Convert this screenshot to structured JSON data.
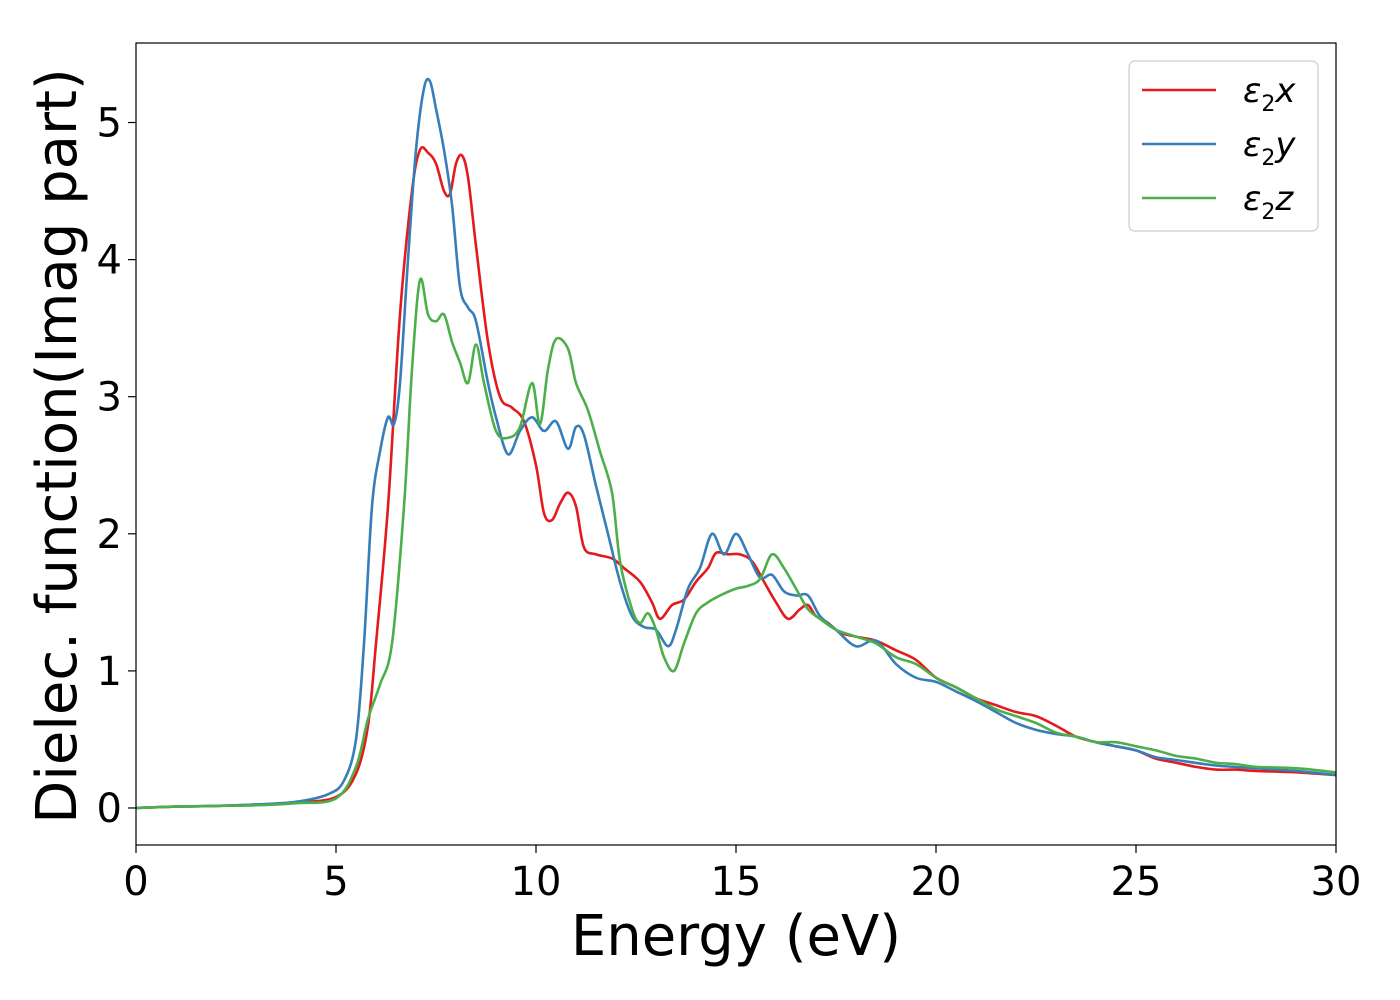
{
  "chart_data": {
    "type": "line",
    "title": "",
    "xlabel": "Energy (eV)",
    "ylabel": "Dielec. function(Imag part)",
    "xlim": [
      0,
      30
    ],
    "ylim": [
      -0.27,
      5.58
    ],
    "xticks": [
      0,
      5,
      10,
      15,
      20,
      25,
      30
    ],
    "yticks": [
      0,
      1,
      2,
      3,
      4,
      5
    ],
    "grid": false,
    "legend_position": "top-right",
    "series": [
      {
        "name": "ε2x",
        "legend": {
          "base": "ε",
          "sub": "2",
          "var": "x"
        },
        "color": "#e41a1c",
        "points": [
          [
            0,
            0
          ],
          [
            1,
            0.01
          ],
          [
            2,
            0.015
          ],
          [
            3,
            0.025
          ],
          [
            4,
            0.04
          ],
          [
            5,
            0.08
          ],
          [
            5.5,
            0.25
          ],
          [
            5.8,
            0.6
          ],
          [
            6.0,
            1.2
          ],
          [
            6.3,
            2.2
          ],
          [
            6.6,
            3.6
          ],
          [
            6.9,
            4.5
          ],
          [
            7.1,
            4.8
          ],
          [
            7.3,
            4.78
          ],
          [
            7.5,
            4.7
          ],
          [
            7.7,
            4.5
          ],
          [
            7.85,
            4.48
          ],
          [
            8.0,
            4.7
          ],
          [
            8.15,
            4.76
          ],
          [
            8.3,
            4.6
          ],
          [
            8.5,
            4.1
          ],
          [
            8.8,
            3.4
          ],
          [
            9.1,
            3.0
          ],
          [
            9.4,
            2.92
          ],
          [
            9.7,
            2.82
          ],
          [
            10.0,
            2.5
          ],
          [
            10.2,
            2.15
          ],
          [
            10.4,
            2.1
          ],
          [
            10.6,
            2.22
          ],
          [
            10.8,
            2.3
          ],
          [
            11.0,
            2.2
          ],
          [
            11.2,
            1.9
          ],
          [
            11.5,
            1.85
          ],
          [
            11.9,
            1.82
          ],
          [
            12.2,
            1.75
          ],
          [
            12.6,
            1.65
          ],
          [
            12.9,
            1.5
          ],
          [
            13.1,
            1.38
          ],
          [
            13.4,
            1.48
          ],
          [
            13.7,
            1.52
          ],
          [
            14.0,
            1.65
          ],
          [
            14.3,
            1.75
          ],
          [
            14.5,
            1.86
          ],
          [
            14.8,
            1.85
          ],
          [
            15.1,
            1.85
          ],
          [
            15.4,
            1.8
          ],
          [
            15.7,
            1.65
          ],
          [
            16.0,
            1.5
          ],
          [
            16.3,
            1.38
          ],
          [
            16.6,
            1.45
          ],
          [
            16.8,
            1.48
          ],
          [
            17.0,
            1.4
          ],
          [
            17.3,
            1.35
          ],
          [
            17.6,
            1.28
          ],
          [
            18.0,
            1.25
          ],
          [
            18.5,
            1.22
          ],
          [
            19.0,
            1.15
          ],
          [
            19.5,
            1.08
          ],
          [
            20.0,
            0.95
          ],
          [
            20.5,
            0.88
          ],
          [
            21.0,
            0.8
          ],
          [
            21.5,
            0.75
          ],
          [
            22.0,
            0.7
          ],
          [
            22.5,
            0.67
          ],
          [
            23.0,
            0.6
          ],
          [
            23.5,
            0.52
          ],
          [
            24.0,
            0.48
          ],
          [
            24.5,
            0.45
          ],
          [
            25.0,
            0.42
          ],
          [
            25.5,
            0.36
          ],
          [
            26.0,
            0.33
          ],
          [
            26.5,
            0.3
          ],
          [
            27.0,
            0.28
          ],
          [
            27.5,
            0.28
          ],
          [
            28.0,
            0.27
          ],
          [
            29.0,
            0.26
          ],
          [
            30.0,
            0.24
          ]
        ]
      },
      {
        "name": "ε2y",
        "legend": {
          "base": "ε",
          "sub": "2",
          "var": "y"
        },
        "color": "#377eb8",
        "points": [
          [
            0,
            0
          ],
          [
            1,
            0.01
          ],
          [
            2,
            0.015
          ],
          [
            3,
            0.025
          ],
          [
            4,
            0.045
          ],
          [
            4.8,
            0.1
          ],
          [
            5.2,
            0.2
          ],
          [
            5.5,
            0.5
          ],
          [
            5.7,
            1.2
          ],
          [
            5.9,
            2.2
          ],
          [
            6.1,
            2.6
          ],
          [
            6.3,
            2.85
          ],
          [
            6.45,
            2.8
          ],
          [
            6.6,
            3.1
          ],
          [
            6.8,
            4.0
          ],
          [
            7.0,
            4.8
          ],
          [
            7.2,
            5.25
          ],
          [
            7.35,
            5.3
          ],
          [
            7.5,
            5.1
          ],
          [
            7.7,
            4.8
          ],
          [
            7.9,
            4.4
          ],
          [
            8.1,
            3.8
          ],
          [
            8.3,
            3.65
          ],
          [
            8.5,
            3.55
          ],
          [
            8.8,
            3.1
          ],
          [
            9.0,
            2.85
          ],
          [
            9.3,
            2.58
          ],
          [
            9.6,
            2.75
          ],
          [
            9.9,
            2.85
          ],
          [
            10.2,
            2.75
          ],
          [
            10.5,
            2.82
          ],
          [
            10.8,
            2.62
          ],
          [
            11.0,
            2.78
          ],
          [
            11.2,
            2.72
          ],
          [
            11.5,
            2.35
          ],
          [
            11.8,
            2.0
          ],
          [
            12.1,
            1.65
          ],
          [
            12.4,
            1.4
          ],
          [
            12.7,
            1.32
          ],
          [
            13.0,
            1.3
          ],
          [
            13.3,
            1.18
          ],
          [
            13.5,
            1.3
          ],
          [
            13.8,
            1.6
          ],
          [
            14.1,
            1.75
          ],
          [
            14.4,
            2.0
          ],
          [
            14.7,
            1.85
          ],
          [
            15.0,
            2.0
          ],
          [
            15.3,
            1.85
          ],
          [
            15.6,
            1.68
          ],
          [
            15.9,
            1.7
          ],
          [
            16.2,
            1.58
          ],
          [
            16.5,
            1.55
          ],
          [
            16.8,
            1.55
          ],
          [
            17.1,
            1.4
          ],
          [
            17.5,
            1.3
          ],
          [
            18.0,
            1.18
          ],
          [
            18.5,
            1.22
          ],
          [
            19.0,
            1.05
          ],
          [
            19.5,
            0.95
          ],
          [
            20.0,
            0.92
          ],
          [
            20.5,
            0.85
          ],
          [
            21.0,
            0.78
          ],
          [
            21.5,
            0.7
          ],
          [
            22.0,
            0.62
          ],
          [
            22.5,
            0.57
          ],
          [
            23.0,
            0.54
          ],
          [
            23.5,
            0.52
          ],
          [
            24.0,
            0.48
          ],
          [
            24.5,
            0.45
          ],
          [
            25.0,
            0.42
          ],
          [
            25.5,
            0.37
          ],
          [
            26.0,
            0.35
          ],
          [
            27.0,
            0.31
          ],
          [
            28.0,
            0.29
          ],
          [
            29.0,
            0.27
          ],
          [
            30.0,
            0.24
          ]
        ]
      },
      {
        "name": "ε2z",
        "legend": {
          "base": "ε",
          "sub": "2",
          "var": "z"
        },
        "color": "#4daf4a",
        "points": [
          [
            0,
            0
          ],
          [
            1,
            0.01
          ],
          [
            2,
            0.015
          ],
          [
            3,
            0.02
          ],
          [
            4,
            0.035
          ],
          [
            5,
            0.07
          ],
          [
            5.5,
            0.3
          ],
          [
            5.8,
            0.65
          ],
          [
            6.1,
            0.9
          ],
          [
            6.4,
            1.2
          ],
          [
            6.7,
            2.2
          ],
          [
            6.9,
            3.2
          ],
          [
            7.1,
            3.85
          ],
          [
            7.3,
            3.6
          ],
          [
            7.5,
            3.55
          ],
          [
            7.7,
            3.6
          ],
          [
            7.9,
            3.4
          ],
          [
            8.1,
            3.25
          ],
          [
            8.3,
            3.1
          ],
          [
            8.5,
            3.38
          ],
          [
            8.7,
            3.1
          ],
          [
            9.0,
            2.75
          ],
          [
            9.3,
            2.7
          ],
          [
            9.6,
            2.78
          ],
          [
            9.9,
            3.1
          ],
          [
            10.1,
            2.8
          ],
          [
            10.3,
            3.2
          ],
          [
            10.5,
            3.42
          ],
          [
            10.8,
            3.35
          ],
          [
            11.0,
            3.1
          ],
          [
            11.3,
            2.9
          ],
          [
            11.6,
            2.6
          ],
          [
            11.9,
            2.3
          ],
          [
            12.1,
            1.8
          ],
          [
            12.4,
            1.45
          ],
          [
            12.6,
            1.35
          ],
          [
            12.8,
            1.42
          ],
          [
            13.0,
            1.3
          ],
          [
            13.2,
            1.1
          ],
          [
            13.45,
            1.0
          ],
          [
            13.7,
            1.2
          ],
          [
            14.0,
            1.42
          ],
          [
            14.3,
            1.5
          ],
          [
            14.6,
            1.55
          ],
          [
            15.0,
            1.6
          ],
          [
            15.3,
            1.62
          ],
          [
            15.6,
            1.67
          ],
          [
            15.9,
            1.85
          ],
          [
            16.2,
            1.75
          ],
          [
            16.5,
            1.6
          ],
          [
            16.8,
            1.45
          ],
          [
            17.1,
            1.38
          ],
          [
            17.5,
            1.3
          ],
          [
            18.0,
            1.25
          ],
          [
            18.5,
            1.2
          ],
          [
            19.0,
            1.1
          ],
          [
            19.5,
            1.05
          ],
          [
            20.0,
            0.95
          ],
          [
            20.5,
            0.88
          ],
          [
            21.0,
            0.8
          ],
          [
            21.5,
            0.72
          ],
          [
            22.0,
            0.67
          ],
          [
            22.5,
            0.62
          ],
          [
            23.0,
            0.55
          ],
          [
            23.5,
            0.52
          ],
          [
            24.0,
            0.48
          ],
          [
            24.5,
            0.48
          ],
          [
            25.0,
            0.45
          ],
          [
            25.5,
            0.42
          ],
          [
            26.0,
            0.38
          ],
          [
            26.5,
            0.36
          ],
          [
            27.0,
            0.33
          ],
          [
            27.5,
            0.32
          ],
          [
            28.0,
            0.3
          ],
          [
            29.0,
            0.29
          ],
          [
            30.0,
            0.26
          ]
        ]
      }
    ]
  }
}
